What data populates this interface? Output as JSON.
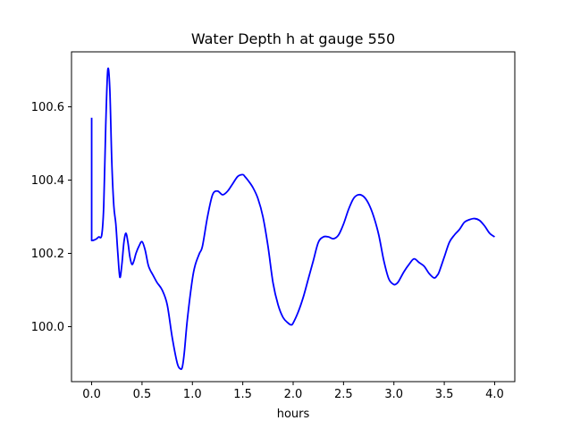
{
  "chart_data": {
    "type": "line",
    "title": "Water Depth h at gauge 550",
    "xlabel": "hours",
    "ylabel": "",
    "xlim": [
      -0.2,
      4.2
    ],
    "ylim": [
      99.85,
      100.75
    ],
    "xticks": [
      0.0,
      0.5,
      1.0,
      1.5,
      2.0,
      2.5,
      3.0,
      3.5,
      4.0
    ],
    "xtick_labels": [
      "0.0",
      "0.5",
      "1.0",
      "1.5",
      "2.0",
      "2.5",
      "3.0",
      "3.5",
      "4.0"
    ],
    "yticks": [
      100.0,
      100.2,
      100.4,
      100.6
    ],
    "ytick_labels": [
      "100.0",
      "100.2",
      "100.4",
      "100.6"
    ],
    "grid": false,
    "series": [
      {
        "color": "#0000ff",
        "x": [
          0.0,
          0.0,
          0.02,
          0.05,
          0.07,
          0.1,
          0.12,
          0.14,
          0.16,
          0.18,
          0.2,
          0.22,
          0.24,
          0.26,
          0.28,
          0.3,
          0.32,
          0.34,
          0.36,
          0.38,
          0.4,
          0.42,
          0.44,
          0.47,
          0.5,
          0.53,
          0.56,
          0.58,
          0.6,
          0.62,
          0.65,
          0.7,
          0.75,
          0.8,
          0.85,
          0.88,
          0.9,
          0.92,
          0.95,
          1.0,
          1.03,
          1.07,
          1.1,
          1.15,
          1.2,
          1.25,
          1.3,
          1.35,
          1.4,
          1.45,
          1.5,
          1.52,
          1.55,
          1.6,
          1.65,
          1.7,
          1.75,
          1.8,
          1.85,
          1.9,
          1.95,
          1.98,
          2.0,
          2.05,
          2.1,
          2.15,
          2.2,
          2.25,
          2.3,
          2.35,
          2.4,
          2.45,
          2.5,
          2.55,
          2.6,
          2.65,
          2.7,
          2.75,
          2.8,
          2.85,
          2.9,
          2.95,
          3.0,
          3.03,
          3.05,
          3.1,
          3.15,
          3.2,
          3.25,
          3.3,
          3.35,
          3.4,
          3.43,
          3.45,
          3.5,
          3.55,
          3.6,
          3.65,
          3.7,
          3.75,
          3.8,
          3.85,
          3.9,
          3.95,
          4.0
        ],
        "y": [
          100.57,
          100.235,
          100.236,
          100.24,
          100.245,
          100.25,
          100.33,
          100.55,
          100.7,
          100.65,
          100.45,
          100.33,
          100.28,
          100.2,
          100.135,
          100.17,
          100.23,
          100.255,
          100.23,
          100.19,
          100.17,
          100.18,
          100.2,
          100.22,
          100.232,
          100.21,
          100.17,
          100.155,
          100.145,
          100.135,
          100.12,
          100.1,
          100.06,
          99.97,
          99.9,
          99.885,
          99.89,
          99.93,
          100.02,
          100.13,
          100.17,
          100.2,
          100.22,
          100.3,
          100.36,
          100.37,
          100.36,
          100.37,
          100.39,
          100.41,
          100.415,
          100.41,
          100.4,
          100.38,
          100.35,
          100.3,
          100.22,
          100.12,
          100.06,
          100.025,
          100.01,
          100.005,
          100.01,
          100.04,
          100.08,
          100.13,
          100.18,
          100.23,
          100.245,
          100.245,
          100.24,
          100.25,
          100.28,
          100.32,
          100.35,
          100.36,
          100.355,
          100.335,
          100.3,
          100.25,
          100.18,
          100.13,
          100.115,
          100.118,
          100.125,
          100.15,
          100.17,
          100.185,
          100.175,
          100.165,
          100.145,
          100.133,
          100.14,
          100.15,
          100.19,
          100.23,
          100.25,
          100.265,
          100.285,
          100.292,
          100.295,
          100.29,
          100.275,
          100.255,
          100.245
        ]
      }
    ]
  }
}
